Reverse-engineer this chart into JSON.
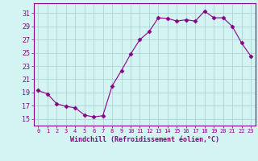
{
  "x": [
    0,
    1,
    2,
    3,
    4,
    5,
    6,
    7,
    8,
    9,
    10,
    11,
    12,
    13,
    14,
    15,
    16,
    17,
    18,
    19,
    20,
    21,
    22,
    23
  ],
  "y": [
    19.3,
    18.8,
    17.3,
    16.9,
    16.7,
    15.6,
    15.3,
    15.5,
    20.0,
    22.3,
    24.8,
    27.0,
    28.2,
    30.3,
    30.2,
    29.8,
    30.0,
    29.8,
    31.3,
    30.3,
    30.3,
    29.0,
    26.5,
    24.5
  ],
  "line_color": "#880088",
  "marker": "D",
  "marker_size": 2.5,
  "background_color": "#d4f4f4",
  "grid_color": "#aacccc",
  "xlabel": "Windchill (Refroidissement éolien,°C)",
  "xlabel_color": "#880088",
  "tick_color": "#880088",
  "axis_color": "#880088",
  "ylim": [
    14.0,
    32.5
  ],
  "yticks": [
    15,
    17,
    19,
    21,
    23,
    25,
    27,
    29,
    31
  ],
  "xlim": [
    -0.5,
    23.5
  ],
  "ylabel_fontsize": 6,
  "xlabel_fontsize": 6,
  "xtick_fontsize": 5,
  "ytick_fontsize": 6
}
